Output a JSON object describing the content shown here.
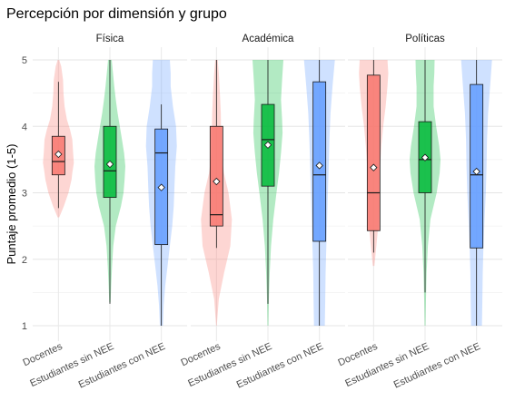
{
  "chart_data": {
    "type": "violin-box",
    "title": "Percepción por dimensión y grupo",
    "ylabel": "Puntaje promedio (1-5)",
    "xlabel": "",
    "ylim": [
      1,
      5
    ],
    "yticks": [
      "1",
      "2",
      "3",
      "4",
      "5"
    ],
    "grid": true,
    "legend": "none",
    "groups": [
      "Docentes",
      "Estudiantes sin NEE",
      "Estudiantes con NEE"
    ],
    "group_colors": [
      "#F8766D",
      "#00BA38",
      "#619CFF"
    ],
    "facets": [
      {
        "name": "Física",
        "boxes": [
          {
            "group": "Docentes",
            "min": 2.77,
            "q1": 3.27,
            "median": 3.47,
            "q3": 3.85,
            "max": 4.67,
            "mean": 3.58,
            "density": [
              [
                2.63,
                0.05
              ],
              [
                2.8,
                0.35
              ],
              [
                3.0,
                0.65
              ],
              [
                3.2,
                0.85
              ],
              [
                3.3,
                0.9
              ],
              [
                3.45,
                1.0
              ],
              [
                3.6,
                0.95
              ],
              [
                3.8,
                0.9
              ],
              [
                3.95,
                0.75
              ],
              [
                4.1,
                0.55
              ],
              [
                4.3,
                0.4
              ],
              [
                4.5,
                0.33
              ],
              [
                4.7,
                0.3
              ],
              [
                4.9,
                0.18
              ],
              [
                5.0,
                0.05
              ]
            ]
          },
          {
            "group": "Estudiantes sin NEE",
            "min": 1.33,
            "q1": 2.93,
            "median": 3.33,
            "q3": 4.0,
            "max": 5.0,
            "mean": 3.43,
            "density": [
              [
                1.35,
                0.04
              ],
              [
                1.6,
                0.08
              ],
              [
                1.9,
                0.14
              ],
              [
                2.2,
                0.22
              ],
              [
                2.5,
                0.38
              ],
              [
                2.8,
                0.72
              ],
              [
                3.0,
                0.88
              ],
              [
                3.2,
                0.95
              ],
              [
                3.4,
                1.0
              ],
              [
                3.6,
                0.92
              ],
              [
                3.8,
                0.78
              ],
              [
                4.0,
                0.64
              ],
              [
                4.2,
                0.5
              ],
              [
                4.4,
                0.38
              ],
              [
                4.6,
                0.28
              ],
              [
                4.8,
                0.2
              ],
              [
                5.0,
                0.12
              ]
            ]
          },
          {
            "group": "Estudiantes con NEE",
            "min": 1.0,
            "q1": 2.22,
            "median": 3.6,
            "q3": 3.96,
            "max": 4.33,
            "mean": 3.08,
            "density": [
              [
                1.0,
                0.1
              ],
              [
                1.3,
                0.15
              ],
              [
                1.6,
                0.25
              ],
              [
                1.9,
                0.4
              ],
              [
                2.2,
                0.55
              ],
              [
                2.5,
                0.7
              ],
              [
                2.8,
                0.8
              ],
              [
                3.1,
                0.85
              ],
              [
                3.4,
                0.9
              ],
              [
                3.7,
                1.0
              ],
              [
                4.0,
                0.95
              ],
              [
                4.3,
                0.75
              ],
              [
                4.6,
                0.6
              ],
              [
                4.8,
                0.6
              ],
              [
                5.0,
                0.55
              ]
            ]
          }
        ]
      },
      {
        "name": "Académica",
        "boxes": [
          {
            "group": "Docentes",
            "min": 2.17,
            "q1": 2.5,
            "median": 2.67,
            "q3": 4.0,
            "max": 5.0,
            "mean": 3.17,
            "density": [
              [
                1.0,
                0.02
              ],
              [
                1.4,
                0.15
              ],
              [
                1.8,
                0.5
              ],
              [
                2.2,
                0.9
              ],
              [
                2.6,
                1.0
              ],
              [
                3.0,
                0.78
              ],
              [
                3.3,
                0.48
              ],
              [
                3.6,
                0.32
              ],
              [
                3.9,
                0.3
              ],
              [
                4.2,
                0.28
              ],
              [
                4.5,
                0.22
              ],
              [
                4.8,
                0.15
              ],
              [
                5.0,
                0.08
              ]
            ]
          },
          {
            "group": "Estudiantes sin NEE",
            "min": 1.33,
            "q1": 3.1,
            "median": 3.8,
            "q3": 4.33,
            "max": 5.0,
            "mean": 3.72,
            "density": [
              [
                1.0,
                0.03
              ],
              [
                1.4,
                0.06
              ],
              [
                1.8,
                0.12
              ],
              [
                2.2,
                0.2
              ],
              [
                2.6,
                0.35
              ],
              [
                3.0,
                0.55
              ],
              [
                3.3,
                0.72
              ],
              [
                3.6,
                0.85
              ],
              [
                3.9,
                0.95
              ],
              [
                4.1,
                0.92
              ],
              [
                4.4,
                0.85
              ],
              [
                4.7,
                0.92
              ],
              [
                5.0,
                1.0
              ]
            ]
          },
          {
            "group": "Estudiantes con NEE",
            "min": 1.0,
            "q1": 2.27,
            "median": 3.27,
            "q3": 4.67,
            "max": 5.0,
            "mean": 3.41,
            "density": [
              [
                1.0,
                0.35
              ],
              [
                1.4,
                0.38
              ],
              [
                1.8,
                0.4
              ],
              [
                2.2,
                0.45
              ],
              [
                2.6,
                0.5
              ],
              [
                3.0,
                0.55
              ],
              [
                3.4,
                0.6
              ],
              [
                3.8,
                0.65
              ],
              [
                4.2,
                0.72
              ],
              [
                4.6,
                0.85
              ],
              [
                5.0,
                1.0
              ]
            ]
          }
        ]
      },
      {
        "name": "Políticas",
        "boxes": [
          {
            "group": "Docentes",
            "min": 2.1,
            "q1": 2.43,
            "median": 3.0,
            "q3": 4.77,
            "max": 5.0,
            "mean": 3.38,
            "density": [
              [
                1.9,
                0.05
              ],
              [
                2.2,
                0.18
              ],
              [
                2.5,
                0.3
              ],
              [
                2.8,
                0.36
              ],
              [
                3.1,
                0.38
              ],
              [
                3.4,
                0.42
              ],
              [
                3.7,
                0.5
              ],
              [
                4.0,
                0.62
              ],
              [
                4.3,
                0.78
              ],
              [
                4.6,
                0.9
              ],
              [
                4.8,
                0.95
              ],
              [
                5.0,
                0.9
              ]
            ]
          },
          {
            "group": "Estudiantes sin NEE",
            "min": 1.5,
            "q1": 3.0,
            "median": 3.5,
            "q3": 4.07,
            "max": 5.0,
            "mean": 3.53,
            "density": [
              [
                1.0,
                0.03
              ],
              [
                1.4,
                0.06
              ],
              [
                1.8,
                0.1
              ],
              [
                2.2,
                0.18
              ],
              [
                2.6,
                0.35
              ],
              [
                3.0,
                0.75
              ],
              [
                3.3,
                0.95
              ],
              [
                3.5,
                1.0
              ],
              [
                3.7,
                0.92
              ],
              [
                4.0,
                0.72
              ],
              [
                4.3,
                0.55
              ],
              [
                4.6,
                0.55
              ],
              [
                4.8,
                0.6
              ],
              [
                5.0,
                0.62
              ]
            ]
          },
          {
            "group": "Estudiantes con NEE",
            "min": 1.0,
            "q1": 2.17,
            "median": 3.27,
            "q3": 4.63,
            "max": 5.0,
            "mean": 3.32,
            "density": [
              [
                1.0,
                0.35
              ],
              [
                1.4,
                0.38
              ],
              [
                1.8,
                0.4
              ],
              [
                2.2,
                0.45
              ],
              [
                2.6,
                0.52
              ],
              [
                3.0,
                0.6
              ],
              [
                3.4,
                0.65
              ],
              [
                3.8,
                0.68
              ],
              [
                4.2,
                0.75
              ],
              [
                4.6,
                0.88
              ],
              [
                5.0,
                1.0
              ]
            ]
          }
        ]
      }
    ]
  }
}
